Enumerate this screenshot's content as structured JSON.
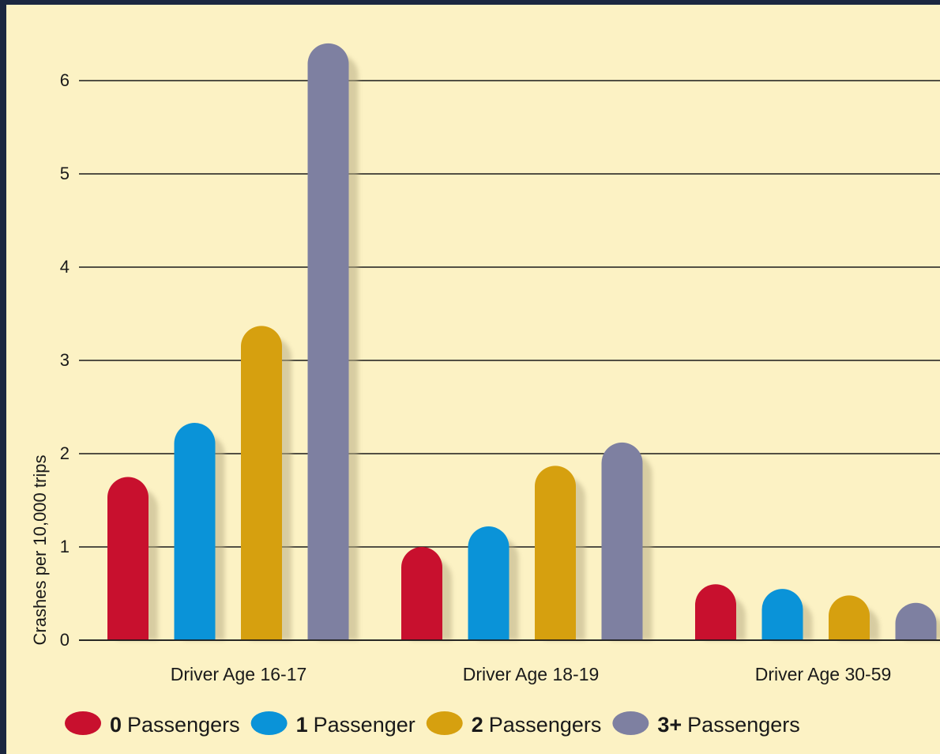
{
  "chart_data": {
    "type": "bar",
    "ylabel": "Crashes per 10,000 trips",
    "ylim": [
      0,
      6.5
    ],
    "yticks": [
      0,
      1,
      2,
      3,
      4,
      5,
      6
    ],
    "grid": true,
    "legend_placement": "bottom",
    "categories": [
      "Driver Age 16-17",
      "Driver Age 18-19",
      "Driver Age 30-59"
    ],
    "series": [
      {
        "count": "0",
        "word": "Passengers",
        "color": "#c8102e",
        "values": [
          1.75,
          1.0,
          0.6
        ]
      },
      {
        "count": "1",
        "word": "Passenger",
        "color": "#0a93d8",
        "values": [
          2.33,
          1.22,
          0.55
        ]
      },
      {
        "count": "2",
        "word": "Passengers",
        "color": "#d6a00f",
        "values": [
          3.37,
          1.87,
          0.48
        ]
      },
      {
        "count": "3+",
        "word": "Passengers",
        "color": "#7e80a1",
        "values": [
          6.4,
          2.12,
          0.4
        ]
      }
    ]
  }
}
